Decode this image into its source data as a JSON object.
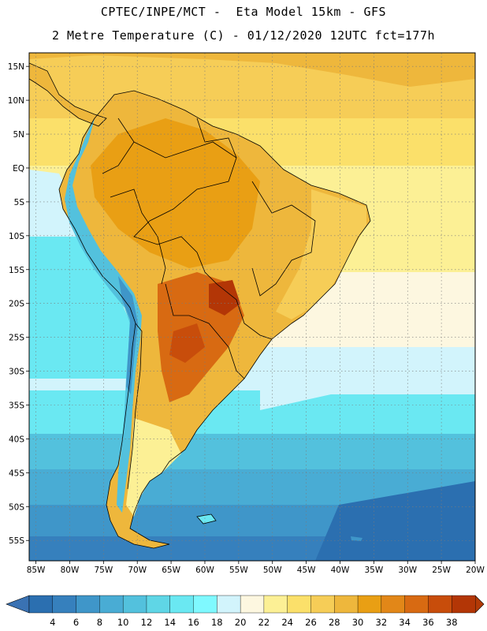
{
  "header": {
    "title_line1": "CPTEC/INPE/MCT -  Eta Model 15km - GFS",
    "title_line2": "2 Metre Temperature (C) - 01/12/2020 12UTC fct=177h"
  },
  "map": {
    "variable": "2 Metre Temperature",
    "units": "C",
    "lon_range": [
      -86,
      -20
    ],
    "lat_range": [
      -58,
      17
    ],
    "lon_ticks": [
      {
        "value": -85,
        "label": "85W"
      },
      {
        "value": -80,
        "label": "80W"
      },
      {
        "value": -75,
        "label": "75W"
      },
      {
        "value": -70,
        "label": "70W"
      },
      {
        "value": -65,
        "label": "65W"
      },
      {
        "value": -60,
        "label": "60W"
      },
      {
        "value": -55,
        "label": "55W"
      },
      {
        "value": -50,
        "label": "50W"
      },
      {
        "value": -45,
        "label": "45W"
      },
      {
        "value": -40,
        "label": "40W"
      },
      {
        "value": -35,
        "label": "35W"
      },
      {
        "value": -30,
        "label": "30W"
      },
      {
        "value": -25,
        "label": "25W"
      },
      {
        "value": -20,
        "label": "20W"
      }
    ],
    "lat_ticks": [
      {
        "value": 15,
        "label": "15N"
      },
      {
        "value": 10,
        "label": "10N"
      },
      {
        "value": 5,
        "label": "5N"
      },
      {
        "value": 0,
        "label": "EQ"
      },
      {
        "value": -5,
        "label": "5S"
      },
      {
        "value": -10,
        "label": "10S"
      },
      {
        "value": -15,
        "label": "15S"
      },
      {
        "value": -20,
        "label": "20S"
      },
      {
        "value": -25,
        "label": "25S"
      },
      {
        "value": -30,
        "label": "30S"
      },
      {
        "value": -35,
        "label": "35S"
      },
      {
        "value": -40,
        "label": "40S"
      },
      {
        "value": -45,
        "label": "45S"
      },
      {
        "value": -50,
        "label": "50S"
      },
      {
        "value": -55,
        "label": "55S"
      }
    ]
  },
  "colorbar": {
    "labels": [
      "4",
      "6",
      "8",
      "10",
      "12",
      "14",
      "16",
      "18",
      "20",
      "22",
      "24",
      "26",
      "28",
      "30",
      "32",
      "34",
      "36",
      "38"
    ],
    "colors": [
      "#2b6fb0",
      "#3680bd",
      "#3f96c9",
      "#49acd4",
      "#53c1dd",
      "#5fd6e6",
      "#6ae8f2",
      "#7ff9ff",
      "#d2f4fc",
      "#fdf7e0",
      "#fcf095",
      "#fbe06a",
      "#f6cd57",
      "#eeb73c",
      "#e99f14",
      "#e28718",
      "#d86a12",
      "#c84d0b",
      "#b33606"
    ],
    "left_arrow_color": "#3a72b3",
    "right_arrow_color": "#b23a06"
  }
}
